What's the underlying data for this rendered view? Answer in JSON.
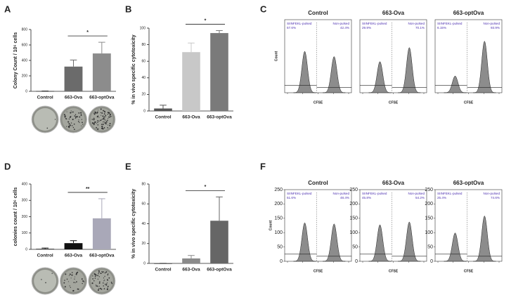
{
  "chart_data": [
    {
      "panel": "A",
      "type": "bar",
      "ylabel": "Colony Count / 10⁶ cells",
      "categories": [
        "Control",
        "663-Ova",
        "663-optOva"
      ],
      "values": [
        3,
        320,
        490
      ],
      "errors": [
        0,
        85,
        145
      ],
      "colors": [
        "#1a1a1a",
        "#6b6b6b",
        "#8c8c8c"
      ],
      "ylim": [
        0,
        800
      ],
      "yticks": [
        0,
        200,
        400,
        600,
        800
      ],
      "annotation": "*"
    },
    {
      "panel": "B",
      "type": "bar",
      "ylabel": "% in vivo specific cytotoxicity",
      "categories": [
        "Control",
        "663-Ova",
        "663-optOva"
      ],
      "values": [
        3,
        71,
        94
      ],
      "errors": [
        4,
        11,
        3
      ],
      "colors": [
        "#555555",
        "#c8c8c8",
        "#7a7a7a"
      ],
      "ylim": [
        0,
        100
      ],
      "yticks": [
        0,
        20,
        40,
        60,
        80,
        100
      ],
      "annotation": "*"
    },
    {
      "panel": "C",
      "type": "flow",
      "ylabel": "Count",
      "xlabel": "CFSE",
      "plots": [
        {
          "title": "Control",
          "gates": [
            "SIINFEKL-pulsed",
            "Non-pulsed"
          ],
          "values": [
            57.6,
            42.4
          ],
          "value_labels": [
            "57.6%",
            "42.4%"
          ]
        },
        {
          "title": "663-Ova",
          "gates": [
            "SIINFEKL-pulsed",
            "Non-pulsed"
          ],
          "values": [
            29.9,
            70.1
          ],
          "value_labels": [
            "29.9%",
            "70.1%"
          ]
        },
        {
          "title": "663-optOva",
          "gates": [
            "SIINFEKL-pulsed",
            "Non-pulsed"
          ],
          "values": [
            6.15,
            93.9
          ],
          "value_labels": [
            "6.15%",
            "93.9%"
          ]
        }
      ]
    },
    {
      "panel": "D",
      "type": "bar",
      "ylabel": "colonies count / 10⁶ cells",
      "categories": [
        "Control",
        "663-Ova",
        "663-optOva"
      ],
      "values": [
        3,
        38,
        190
      ],
      "errors": [
        5,
        15,
        120
      ],
      "colors": [
        "#111111",
        "#111111",
        "#a9a8b8"
      ],
      "ylim": [
        0,
        400
      ],
      "yticks": [
        0,
        100,
        200,
        300,
        400
      ],
      "annotation": "**"
    },
    {
      "panel": "E",
      "type": "bar",
      "ylabel": "% in vivo specific cytotoxicity",
      "categories": [
        "Control",
        "663-Ova",
        "663-optOva"
      ],
      "values": [
        0,
        5,
        43
      ],
      "errors": [
        0,
        3,
        24
      ],
      "colors": [
        "#111111",
        "#8a8a8a",
        "#666666"
      ],
      "ylim": [
        0,
        80
      ],
      "yticks": [
        0,
        20,
        40,
        60,
        80
      ],
      "annotation": "*"
    },
    {
      "panel": "F",
      "type": "flow",
      "ylabel": "Count",
      "xlabel": "CFSE",
      "ylim": [
        0,
        250
      ],
      "yticks": [
        0,
        50,
        100,
        150,
        200,
        250
      ],
      "plots": [
        {
          "title": "Control",
          "gates": [
            "SIINFEKL-pulsed",
            "Non-pulsed"
          ],
          "values": [
            51.6,
            48.4
          ],
          "value_labels": [
            "51.6%",
            "48.4%"
          ]
        },
        {
          "title": "663-Ova",
          "gates": [
            "SIINFEKL-pulsed",
            "Non-pulsed"
          ],
          "values": [
            45.8,
            54.2
          ],
          "value_labels": [
            "45.8%",
            "54.2%"
          ]
        },
        {
          "title": "663-optOva",
          "gates": [
            "SIINFEKL-pulsed",
            "Non-pulsed"
          ],
          "values": [
            25.4,
            74.6
          ],
          "value_labels": [
            "25.4%",
            "74.6%"
          ]
        }
      ]
    }
  ]
}
